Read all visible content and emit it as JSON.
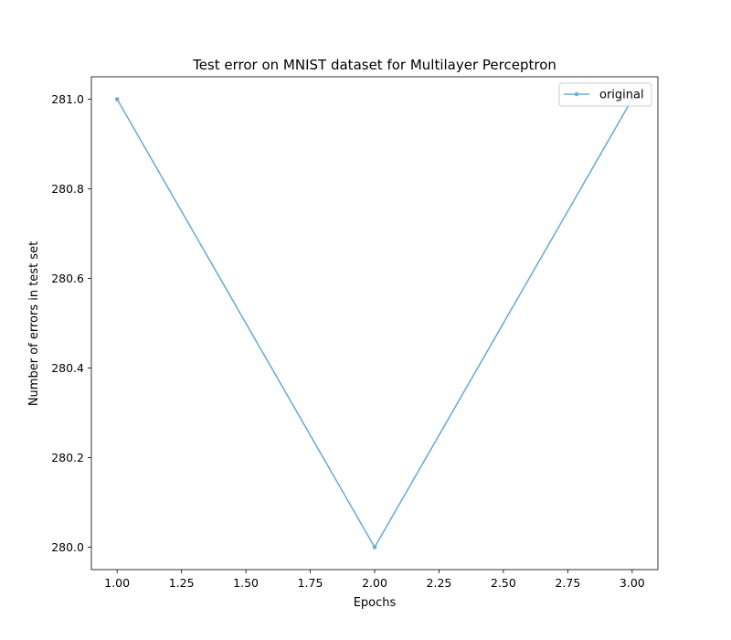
{
  "chart_data": {
    "type": "line",
    "title": "Test error on MNIST dataset for Multilayer Perceptron",
    "xlabel": "Epochs",
    "ylabel": "Number of errors in test set",
    "xlim": [
      0.9,
      3.1
    ],
    "ylim": [
      279.95,
      281.05
    ],
    "xticks": [
      "1.00",
      "1.25",
      "1.50",
      "1.75",
      "2.00",
      "2.25",
      "2.50",
      "2.75",
      "3.00"
    ],
    "yticks": [
      "280.0",
      "280.2",
      "280.4",
      "280.6",
      "280.8",
      "281.0"
    ],
    "grid": false,
    "legend_position": "top-right",
    "series": [
      {
        "name": "original",
        "color": "#6baed6",
        "marker": "point",
        "x": [
          1,
          2,
          3
        ],
        "y": [
          281,
          280,
          281
        ]
      }
    ]
  }
}
